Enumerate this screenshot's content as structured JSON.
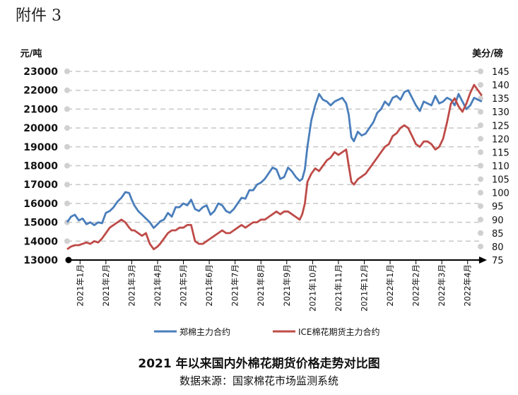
{
  "heading": "附件 3",
  "caption": {
    "title": "2021 年以来国内外棉花期货价格走势对比图",
    "source": "数据来源：国家棉花市场监测系统"
  },
  "colors": {
    "zce": "#4a7ebb",
    "ice": "#be4b48",
    "grid": "#c8c8c8",
    "dot": "#d0d0d0"
  },
  "chart_data": {
    "type": "line",
    "title": "2021 年以来国内外棉花期货价格走势对比图",
    "ylabel_left": "元/吨",
    "ylabel_right": "美分/磅",
    "ylim_left": [
      13000,
      23000
    ],
    "yticks_left": [
      "13000",
      "14000",
      "15000",
      "16000",
      "17000",
      "18000",
      "19000",
      "20000",
      "21000",
      "22000",
      "23000"
    ],
    "ylim_right": [
      75,
      145
    ],
    "yticks_right": [
      "75",
      "80",
      "85",
      "90",
      "95",
      "100",
      "105",
      "110",
      "115",
      "120",
      "125",
      "130",
      "135",
      "140",
      "145"
    ],
    "x_range": [
      0,
      16
    ],
    "categories": [
      "2021年1月",
      "2021年2月",
      "2021年3月",
      "2021年4月",
      "2021年5月",
      "2021年6月",
      "2021年7月",
      "2021年8月",
      "2021年9月",
      "2021年10月",
      "2021年11月",
      "2021年12月",
      "2022年1月",
      "2022年2月",
      "2022年3月",
      "2022年4月"
    ],
    "series": [
      {
        "name": "郑棉主力合约",
        "axis": "left",
        "x": [
          0,
          0.15,
          0.3,
          0.45,
          0.6,
          0.75,
          0.9,
          1.05,
          1.2,
          1.35,
          1.5,
          1.65,
          1.8,
          1.95,
          2.1,
          2.25,
          2.4,
          2.5,
          2.6,
          2.75,
          2.9,
          3.05,
          3.2,
          3.35,
          3.5,
          3.6,
          3.75,
          3.9,
          4.05,
          4.2,
          4.35,
          4.5,
          4.65,
          4.8,
          4.95,
          5.1,
          5.25,
          5.4,
          5.55,
          5.7,
          5.85,
          6.0,
          6.15,
          6.3,
          6.45,
          6.6,
          6.75,
          6.9,
          7.05,
          7.2,
          7.35,
          7.5,
          7.65,
          7.8,
          7.95,
          8.1,
          8.25,
          8.4,
          8.55,
          8.7,
          8.85,
          9.0,
          9.1,
          9.2,
          9.3,
          9.45,
          9.6,
          9.75,
          9.9,
          10.05,
          10.2,
          10.35,
          10.5,
          10.65,
          10.8,
          10.9,
          11.0,
          11.1,
          11.25,
          11.4,
          11.55,
          11.7,
          11.85,
          12.0,
          12.15,
          12.3,
          12.45,
          12.6,
          12.75,
          12.9,
          13.05,
          13.2,
          13.35,
          13.5,
          13.65,
          13.8,
          13.95,
          14.1,
          14.25,
          14.4,
          14.55,
          14.7,
          14.85,
          15.0,
          15.15,
          15.3,
          15.45,
          15.6,
          15.75,
          15.9,
          16.05
        ],
        "values": [
          15000,
          15300,
          15400,
          15100,
          15200,
          14900,
          15000,
          14850,
          15000,
          14950,
          15500,
          15600,
          15800,
          16100,
          16300,
          16600,
          16550,
          16200,
          15900,
          15600,
          15400,
          15200,
          15000,
          14700,
          14900,
          15050,
          15150,
          15500,
          15300,
          15800,
          15800,
          16000,
          15900,
          16200,
          15700,
          15600,
          15800,
          15900,
          15400,
          15600,
          16000,
          15900,
          15600,
          15500,
          15700,
          16000,
          16300,
          16250,
          16700,
          16700,
          17000,
          17100,
          17300,
          17600,
          17900,
          17800,
          17300,
          17400,
          17900,
          17700,
          17400,
          17200,
          17300,
          17800,
          19000,
          20400,
          21200,
          21800,
          21500,
          21400,
          21200,
          21400,
          21500,
          21600,
          21300,
          20700,
          19500,
          19300,
          19800,
          19600,
          19700,
          20000,
          20300,
          20800,
          21000,
          21400,
          21200,
          21600,
          21700,
          21500,
          21900,
          22000,
          21600,
          21200,
          20900,
          21400,
          21300,
          21200,
          21700,
          21300,
          21400,
          21600,
          21500,
          21200,
          21800,
          21400,
          21000,
          21200,
          21600,
          21500,
          21400
        ]
      },
      {
        "name": "ICE棉花期货主力合约",
        "axis": "right",
        "x": [
          0,
          0.15,
          0.3,
          0.45,
          0.6,
          0.75,
          0.9,
          1.05,
          1.2,
          1.35,
          1.5,
          1.65,
          1.8,
          1.95,
          2.1,
          2.25,
          2.4,
          2.5,
          2.6,
          2.75,
          2.9,
          3.05,
          3.2,
          3.35,
          3.5,
          3.6,
          3.75,
          3.9,
          4.05,
          4.2,
          4.35,
          4.5,
          4.65,
          4.8,
          4.95,
          5.1,
          5.25,
          5.4,
          5.55,
          5.7,
          5.85,
          6.0,
          6.15,
          6.3,
          6.45,
          6.6,
          6.75,
          6.9,
          7.05,
          7.2,
          7.35,
          7.5,
          7.65,
          7.8,
          7.95,
          8.1,
          8.25,
          8.4,
          8.55,
          8.7,
          8.85,
          9.0,
          9.1,
          9.2,
          9.3,
          9.45,
          9.6,
          9.75,
          9.9,
          10.05,
          10.2,
          10.35,
          10.5,
          10.65,
          10.8,
          10.9,
          11.0,
          11.1,
          11.25,
          11.4,
          11.55,
          11.7,
          11.85,
          12.0,
          12.15,
          12.3,
          12.45,
          12.6,
          12.75,
          12.9,
          13.05,
          13.2,
          13.35,
          13.5,
          13.65,
          13.8,
          13.95,
          14.1,
          14.25,
          14.4,
          14.55,
          14.7,
          14.85,
          15.0,
          15.15,
          15.3,
          15.45,
          15.6,
          15.75,
          15.9,
          16.05
        ],
        "values": [
          79,
          80,
          80.5,
          80.5,
          81,
          81.5,
          81,
          82,
          81.5,
          83,
          85,
          87,
          88,
          89,
          90,
          89,
          87,
          86,
          86,
          85,
          84,
          85,
          81,
          79,
          80,
          81,
          83,
          85,
          86,
          86,
          87,
          87,
          88,
          88,
          82,
          81,
          81,
          82,
          83,
          84,
          85,
          86,
          85,
          85,
          86,
          87,
          88,
          87,
          88,
          89,
          89,
          90,
          90,
          91,
          92,
          93,
          92,
          93,
          93,
          92,
          91,
          90,
          92,
          96,
          104,
          107,
          109,
          108,
          110,
          112,
          113,
          115,
          114,
          115,
          116,
          110,
          104,
          103,
          105,
          106,
          107,
          109,
          111,
          113,
          115,
          117,
          118,
          121,
          122,
          124,
          125,
          124,
          121,
          118,
          117,
          119,
          119,
          118,
          116,
          117,
          120,
          126,
          133,
          135,
          132,
          130,
          133,
          137,
          140,
          138,
          136
        ]
      }
    ],
    "legend": [
      "郑棉主力合约",
      "ICE棉花期货主力合约"
    ],
    "grid": true
  }
}
